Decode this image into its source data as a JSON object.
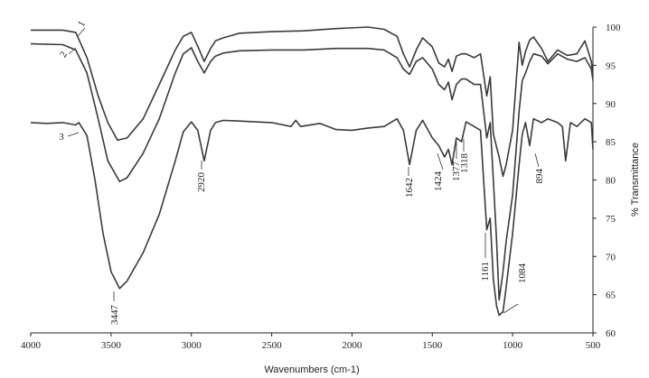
{
  "chart_data": {
    "type": "line",
    "title": "",
    "xlabel": "Wavenumbers (cm-1)",
    "ylabel": "% Transmittance",
    "xlim": [
      4000,
      500
    ],
    "ylim": [
      60,
      100
    ],
    "x_ticks": [
      4000,
      3500,
      3000,
      2500,
      2000,
      1500,
      1000,
      500
    ],
    "y_ticks": [
      60,
      65,
      70,
      75,
      80,
      85,
      90,
      95,
      100
    ],
    "y_axis_side": "right",
    "grid": false,
    "legend": "none",
    "colors": {
      "line": "#3a3a3a",
      "axis": "#222222"
    },
    "series": [
      {
        "name": "1",
        "x": [
          4000,
          3800,
          3720,
          3650,
          3580,
          3520,
          3460,
          3400,
          3300,
          3200,
          3100,
          3050,
          3000,
          2960,
          2920,
          2880,
          2850,
          2800,
          2700,
          2500,
          2300,
          2100,
          1900,
          1800,
          1720,
          1680,
          1642,
          1600,
          1560,
          1500,
          1460,
          1424,
          1400,
          1377,
          1350,
          1318,
          1290,
          1240,
          1200,
          1161,
          1140,
          1120,
          1084,
          1060,
          1040,
          1000,
          960,
          940,
          920,
          894,
          870,
          820,
          780,
          720,
          660,
          600,
          550,
          510,
          500
        ],
        "y": [
          99.6,
          99.6,
          99.3,
          96,
          91,
          87.5,
          85.2,
          85.5,
          88,
          92.5,
          97,
          98.8,
          99.3,
          97.5,
          95.5,
          97.2,
          98.2,
          98.6,
          99.2,
          99.4,
          99.5,
          99.8,
          100,
          99.7,
          98.8,
          96.5,
          94.8,
          97,
          98.6,
          97.4,
          95.3,
          94.8,
          95.8,
          94.2,
          96.2,
          96.5,
          96.5,
          96,
          96.5,
          91,
          93.5,
          86,
          83,
          80.5,
          82,
          86.5,
          98,
          95,
          96.8,
          98.3,
          98.7,
          97.2,
          95.5,
          97,
          96.3,
          96.5,
          98.2,
          95.5,
          93.5
        ]
      },
      {
        "name": "2",
        "x": [
          4000,
          3800,
          3720,
          3650,
          3580,
          3520,
          3447,
          3400,
          3300,
          3200,
          3100,
          3050,
          3000,
          2960,
          2920,
          2880,
          2850,
          2800,
          2700,
          2500,
          2300,
          2100,
          1900,
          1800,
          1720,
          1680,
          1642,
          1600,
          1560,
          1500,
          1460,
          1424,
          1400,
          1377,
          1350,
          1318,
          1290,
          1240,
          1200,
          1161,
          1140,
          1120,
          1100,
          1084,
          1060,
          1040,
          1000,
          960,
          940,
          920,
          894,
          870,
          820,
          780,
          720,
          660,
          600,
          550,
          510,
          500
        ],
        "y": [
          97.8,
          97.7,
          97.0,
          94,
          88,
          82.5,
          79.8,
          80.3,
          83.5,
          88,
          94,
          96.5,
          97.3,
          95.5,
          94.0,
          95.5,
          96.2,
          96.6,
          96.9,
          97.0,
          97.0,
          97.2,
          97.2,
          97.0,
          96.0,
          94.5,
          93.8,
          95.5,
          96.0,
          94.5,
          92.5,
          91.8,
          92.8,
          90.5,
          92.5,
          93.2,
          93.2,
          92.5,
          92.5,
          85.5,
          87.5,
          80,
          72,
          64.3,
          68,
          72,
          78,
          89,
          93,
          94,
          95.5,
          96.5,
          96.2,
          95.2,
          96.5,
          95.8,
          95.5,
          96.0,
          94.5,
          93.0
        ]
      },
      {
        "name": "3",
        "x": [
          4000,
          3900,
          3800,
          3720,
          3700,
          3650,
          3600,
          3550,
          3500,
          3447,
          3400,
          3300,
          3200,
          3100,
          3050,
          3000,
          2960,
          2920,
          2880,
          2850,
          2800,
          2700,
          2500,
          2380,
          2350,
          2320,
          2200,
          2100,
          2000,
          1900,
          1800,
          1720,
          1680,
          1642,
          1600,
          1560,
          1500,
          1460,
          1424,
          1400,
          1377,
          1350,
          1318,
          1290,
          1240,
          1200,
          1161,
          1140,
          1120,
          1100,
          1084,
          1060,
          1040,
          1000,
          960,
          940,
          920,
          894,
          870,
          820,
          780,
          720,
          690,
          670,
          640,
          600,
          550,
          510,
          500
        ],
        "y": [
          87.5,
          87.4,
          87.5,
          87.2,
          87.5,
          85.8,
          80,
          73,
          68,
          65.8,
          66.8,
          70.5,
          75.5,
          82.5,
          86.3,
          87.6,
          86.5,
          82.5,
          86.5,
          87.5,
          87.8,
          87.7,
          87.5,
          87.0,
          87.8,
          87.0,
          87.4,
          86.6,
          86.5,
          86.8,
          87.0,
          88.0,
          86.5,
          82.0,
          86.5,
          87.8,
          85.5,
          84.5,
          83.0,
          84.0,
          82.0,
          85.5,
          85.0,
          87.6,
          87.0,
          86.5,
          73.5,
          75,
          67,
          63.5,
          62.3,
          62.8,
          66,
          73,
          82,
          86,
          87.5,
          84.5,
          88.0,
          87.5,
          88.0,
          87.5,
          87.0,
          82.5,
          87.5,
          87.0,
          88.0,
          87.5,
          84.0
        ]
      }
    ],
    "annotations": [
      "3447",
      "2920",
      "1642",
      "1424",
      "1377",
      "1318",
      "894",
      "1161",
      "1084"
    ]
  }
}
